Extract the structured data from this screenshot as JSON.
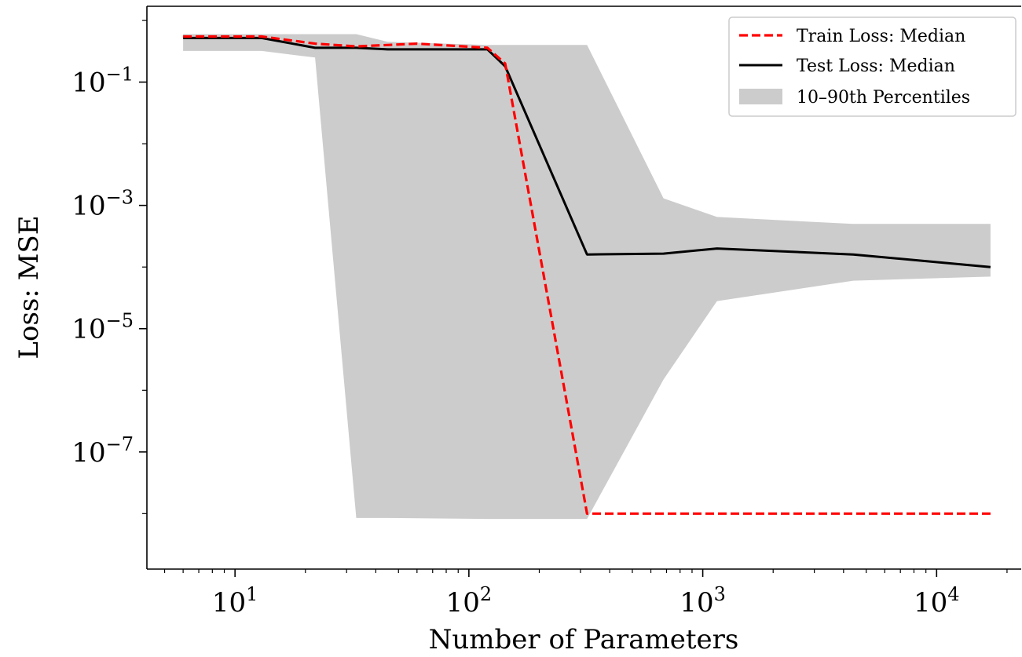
{
  "chart_data": {
    "type": "line",
    "title": "",
    "xlabel": "Number of Parameters",
    "ylabel": "Loss: MSE",
    "xscale": "log",
    "yscale": "log",
    "xlim": [
      4.2,
      23000
    ],
    "ylim_exponents": [
      -8.9,
      0.23
    ],
    "x_ticks": [
      {
        "base": "10",
        "exp": "1",
        "value": 10
      },
      {
        "base": "10",
        "exp": "2",
        "value": 100
      },
      {
        "base": "10",
        "exp": "3",
        "value": 1000
      },
      {
        "base": "10",
        "exp": "4",
        "value": 10000
      }
    ],
    "y_ticks": [
      {
        "base": "10",
        "exp": "−1",
        "value": 0.1
      },
      {
        "base": "10",
        "exp": "−3",
        "value": 0.001
      },
      {
        "base": "10",
        "exp": "−5",
        "value": 1e-05
      },
      {
        "base": "10",
        "exp": "−7",
        "value": 1e-07
      }
    ],
    "grid": false,
    "legend": {
      "placement": "top-right",
      "entries": [
        "Train Loss: Median",
        "Test Loss: Median",
        "10–90th Percentiles"
      ]
    },
    "series": [
      {
        "name": "Train Loss: Median",
        "style": "dashed",
        "color": "#ff0000",
        "x": [
          6,
          13,
          22,
          33,
          45,
          60,
          120,
          143,
          320,
          680,
          1150,
          4400,
          17000
        ],
        "y": [
          0.55,
          0.55,
          0.42,
          0.38,
          0.4,
          0.42,
          0.36,
          0.2,
          1e-08,
          1e-08,
          1e-08,
          1e-08,
          1e-08
        ]
      },
      {
        "name": "Test Loss: Median",
        "style": "solid",
        "color": "#000000",
        "x": [
          6,
          13,
          22,
          33,
          45,
          60,
          120,
          143,
          320,
          680,
          1150,
          4400,
          17000
        ],
        "y": [
          0.52,
          0.52,
          0.36,
          0.36,
          0.34,
          0.34,
          0.34,
          0.18,
          0.00016,
          0.000165,
          0.0002,
          0.00016,
          0.0001
        ]
      }
    ],
    "band": {
      "name": "10–90th Percentiles",
      "color": "#cccccc",
      "x": [
        6,
        13,
        22,
        33,
        45,
        120,
        143,
        320,
        680,
        1150,
        4400,
        17000
      ],
      "upper": [
        0.6,
        0.6,
        0.6,
        0.6,
        0.45,
        0.4,
        0.4,
        0.4,
        0.0013,
        0.00065,
        0.0005,
        0.0005
      ],
      "lower": [
        0.32,
        0.32,
        0.25,
        8.5e-09,
        8.5e-09,
        8.2e-09,
        8.2e-09,
        8.2e-09,
        1.5e-06,
        2.8e-05,
        6e-05,
        7e-05
      ]
    }
  }
}
